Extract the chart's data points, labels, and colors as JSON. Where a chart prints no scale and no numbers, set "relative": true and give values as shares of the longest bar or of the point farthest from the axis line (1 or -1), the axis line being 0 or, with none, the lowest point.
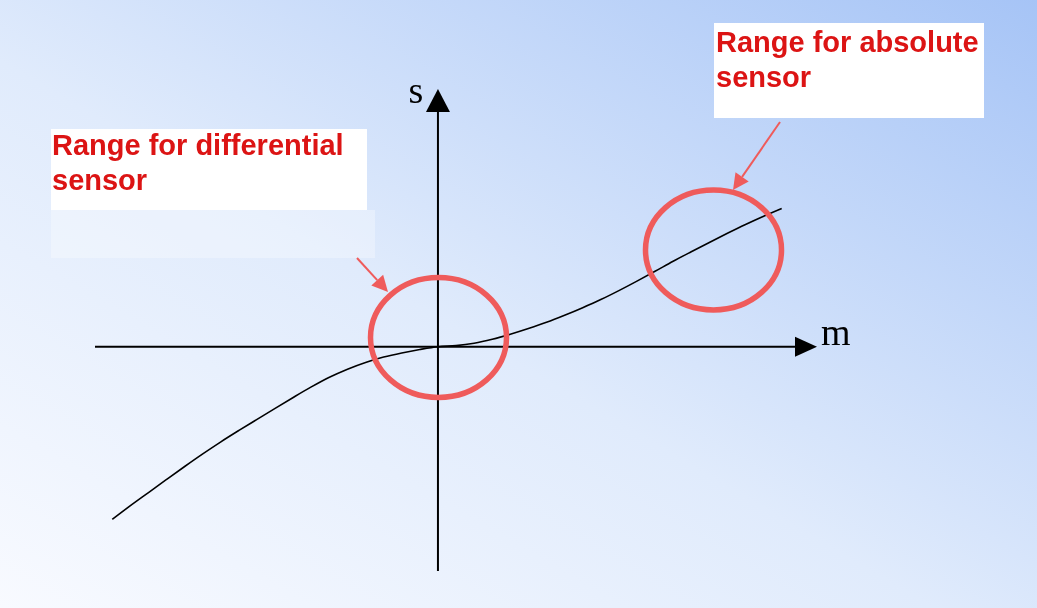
{
  "chart_data": {
    "type": "line",
    "relative": true,
    "xlabel": "m",
    "ylabel": "s",
    "categories": [
      null,
      null,
      null,
      null,
      null,
      null,
      null,
      null,
      null,
      null,
      null,
      null,
      null,
      null,
      null,
      null,
      null,
      null,
      null,
      null,
      null,
      null,
      null,
      null,
      null,
      null,
      null,
      null,
      null,
      null,
      null,
      null,
      null,
      null,
      null,
      null,
      null,
      null
    ],
    "series": [
      {
        "color": "#000000",
        "values": [
          -1,
          -0.921,
          -0.845,
          -0.769,
          -0.694,
          -0.621,
          -0.551,
          -0.485,
          -0.421,
          -0.357,
          -0.294,
          -0.233,
          -0.177,
          -0.13,
          -0.091,
          -0.06,
          -0.036,
          -0.016,
          0,
          0.006,
          0.02,
          0.043,
          0.072,
          0.105,
          0.141,
          0.182,
          0.226,
          0.273,
          0.325,
          0.38,
          0.437,
          0.495,
          0.55,
          0.604,
          0.657,
          0.708,
          0.756,
          0.801
        ]
      }
    ],
    "annotations": [
      "Range for differential sensor",
      "Range for absolute sensor"
    ]
  }
}
